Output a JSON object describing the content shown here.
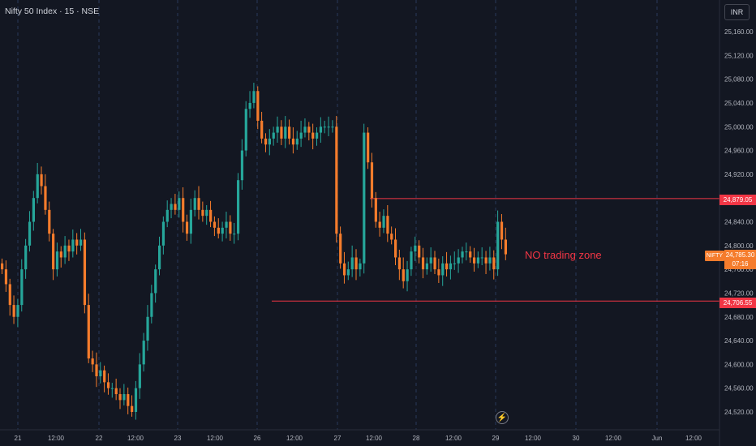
{
  "header": {
    "symbol_title": "Nifty 50 Index · 15 · NSE",
    "currency": "INR"
  },
  "price_axis": {
    "ticks": [
      "25,160.00",
      "25,120.00",
      "25,080.00",
      "25,040.00",
      "25,000.00",
      "24,960.00",
      "24,920.00",
      "24,880.00",
      "24,840.00",
      "24,800.00",
      "24,760.00",
      "24,720.00",
      "24,680.00",
      "24,640.00",
      "24,600.00",
      "24,560.00",
      "24,520.00"
    ]
  },
  "time_axis": {
    "labels": [
      "21",
      "12:00",
      "22",
      "12:00",
      "23",
      "12:00",
      "26",
      "12:00",
      "27",
      "12:00",
      "28",
      "12:00",
      "29",
      "12:00",
      "30",
      "12:00",
      "Jun",
      "12:00"
    ]
  },
  "badges": {
    "upper_level": "24,879.05",
    "lower_level": "24,706.55",
    "symbol": "NIFTY",
    "last_price": "24,785.30",
    "countdown": "07:16"
  },
  "annotation": {
    "text": "NO trading zone"
  },
  "colors": {
    "background": "#131722",
    "up": "#26a69a",
    "down": "#f57c2c",
    "level": "#f23645",
    "grid": "#2a3a5a"
  },
  "icons": {
    "alert": "bolt-icon"
  },
  "chart_data": {
    "type": "candlestick",
    "yaxis": {
      "min": 24500,
      "max": 25180,
      "currency": "INR"
    },
    "levels": [
      {
        "value": 24879.05,
        "color": "#f23645"
      },
      {
        "value": 24706.55,
        "color": "#f23645"
      }
    ],
    "last_price": 24785.3,
    "days": [
      {
        "label": "21",
        "x_start": 0,
        "closes": [
          24760,
          24735,
          24700,
          24680,
          24700,
          24760,
          24800,
          24840,
          24880,
          24920,
          24900,
          24860,
          24820,
          24760,
          24790,
          24780,
          24800,
          24790,
          24810,
          24800,
          24810
        ]
      },
      {
        "label": "22",
        "x_start": 21,
        "closes": [
          24700,
          24610,
          24600,
          24580,
          24590,
          24570,
          24560,
          24560,
          24550,
          24540,
          24550,
          24530,
          24520,
          24560,
          24600,
          24640,
          24680,
          24720,
          24760,
          24800,
          24840,
          24860,
          24870,
          24860
        ]
      },
      {
        "label": "23",
        "x_start": 45,
        "closes": [
          24880,
          24840,
          24820,
          24860,
          24880,
          24860,
          24850,
          24860,
          24840,
          24830,
          24820,
          24830,
          24840,
          24820,
          24820,
          24910,
          24960,
          25030,
          25040,
          25060
        ]
      },
      {
        "label": "26",
        "x_start": 65,
        "closes": [
          25010,
          24980,
          24970,
          24980,
          24990,
          25000,
          24980,
          25000,
          24980,
          24970,
          24980,
          24990,
          25000,
          24990,
          24980,
          24990,
          25000,
          25000,
          25000,
          25000
        ]
      },
      {
        "label": "27",
        "x_start": 85,
        "closes": [
          24820,
          24770,
          24750,
          24760,
          24780,
          24760,
          24770,
          24990,
          24940,
          24880,
          24840,
          24830,
          24850,
          24820,
          24810,
          24780,
          24760,
          24740,
          24760,
          24790,
          24800
        ]
      },
      {
        "label": "28",
        "x_start": 106,
        "closes": [
          24780,
          24760,
          24770,
          24780,
          24760,
          24750,
          24770,
          24760,
          24770,
          24770,
          24780,
          24790,
          24790,
          24780,
          24770,
          24780,
          24780,
          24770,
          24780,
          24760
        ]
      },
      {
        "label": "29",
        "x_start": 126,
        "closes": [
          24840,
          24810,
          24785.3
        ]
      }
    ]
  }
}
